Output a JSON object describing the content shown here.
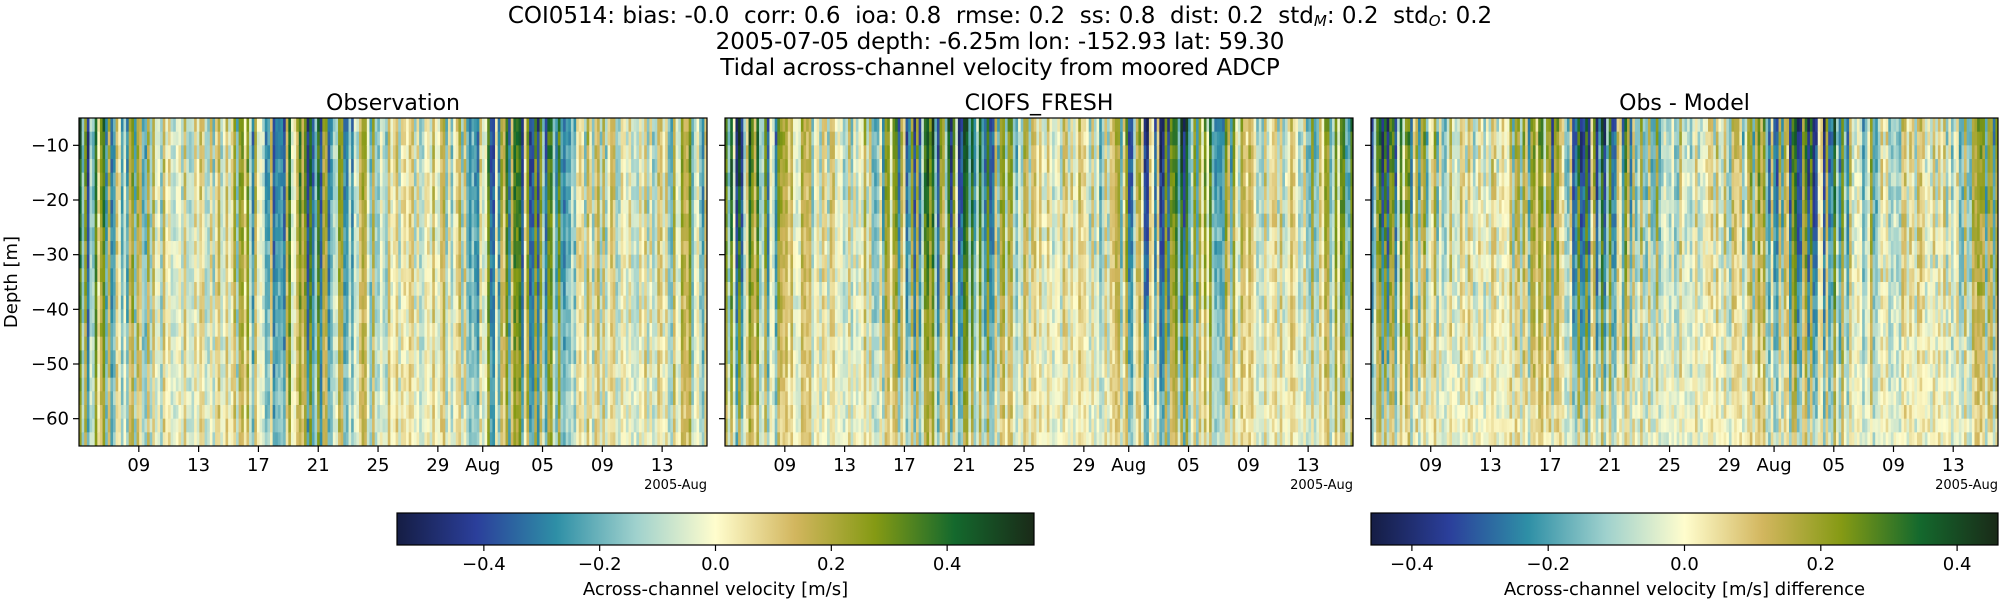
{
  "header": {
    "station": "COI0514",
    "stats": [
      {
        "key": "bias",
        "sub": "",
        "value": "-0.0"
      },
      {
        "key": "corr",
        "sub": "",
        "value": "0.6"
      },
      {
        "key": "ioa",
        "sub": "",
        "value": "0.8"
      },
      {
        "key": "rmse",
        "sub": "",
        "value": "0.2"
      },
      {
        "key": "ss",
        "sub": "",
        "value": "0.8"
      },
      {
        "key": "dist",
        "sub": "",
        "value": "0.2"
      },
      {
        "key": "std",
        "sub": "M",
        "value": "0.2"
      },
      {
        "key": "std",
        "sub": "O",
        "value": "0.2"
      }
    ],
    "line2": "2005-07-05 depth: -6.25m lon: -152.93 lat: 59.30",
    "line3": "Tidal across-channel velocity from moored ADCP"
  },
  "chart_data": [
    {
      "type": "heatmap",
      "title": "Observation",
      "ylabel": "Depth [m]",
      "xlabel": "",
      "x_range": [
        "2005-07-05",
        "2005-08-16"
      ],
      "ylim": [
        -65,
        -5
      ],
      "x_ticks": [
        {
          "date": "2005-07-09",
          "label": "09"
        },
        {
          "date": "2005-07-13",
          "label": "13"
        },
        {
          "date": "2005-07-17",
          "label": "17"
        },
        {
          "date": "2005-07-21",
          "label": "21"
        },
        {
          "date": "2005-07-25",
          "label": "25"
        },
        {
          "date": "2005-07-29",
          "label": "29"
        },
        {
          "date": "2005-08-01",
          "label": "Aug"
        },
        {
          "date": "2005-08-05",
          "label": "05"
        },
        {
          "date": "2005-08-09",
          "label": "09"
        },
        {
          "date": "2005-08-13",
          "label": "13"
        }
      ],
      "x_offset_label": "2005-Aug",
      "y_ticks": [
        -10,
        -20,
        -30,
        -40,
        -50,
        -60
      ],
      "tidal_amplitude_surface": 0.45,
      "tidal_amplitude_bottom": 0.25,
      "bias": 0.0
    },
    {
      "type": "heatmap",
      "title": "CIOFS_FRESH",
      "ylabel": "",
      "xlabel": "",
      "x_range": [
        "2005-07-05",
        "2005-08-16"
      ],
      "ylim": [
        -65,
        -5
      ],
      "x_ticks": [
        {
          "date": "2005-07-09",
          "label": "09"
        },
        {
          "date": "2005-07-13",
          "label": "13"
        },
        {
          "date": "2005-07-17",
          "label": "17"
        },
        {
          "date": "2005-07-21",
          "label": "21"
        },
        {
          "date": "2005-07-25",
          "label": "25"
        },
        {
          "date": "2005-07-29",
          "label": "29"
        },
        {
          "date": "2005-08-01",
          "label": "Aug"
        },
        {
          "date": "2005-08-05",
          "label": "05"
        },
        {
          "date": "2005-08-09",
          "label": "09"
        },
        {
          "date": "2005-08-13",
          "label": "13"
        }
      ],
      "x_offset_label": "2005-Aug",
      "y_ticks": [
        -10,
        -20,
        -30,
        -40,
        -50,
        -60
      ],
      "tidal_amplitude_surface": 0.5,
      "tidal_amplitude_bottom": 0.2,
      "bias": 0.0
    },
    {
      "type": "heatmap",
      "title": "Obs - Model",
      "ylabel": "",
      "xlabel": "",
      "x_range": [
        "2005-07-05",
        "2005-08-16"
      ],
      "ylim": [
        -65,
        -5
      ],
      "x_ticks": [
        {
          "date": "2005-07-09",
          "label": "09"
        },
        {
          "date": "2005-07-13",
          "label": "13"
        },
        {
          "date": "2005-07-17",
          "label": "17"
        },
        {
          "date": "2005-07-21",
          "label": "21"
        },
        {
          "date": "2005-07-25",
          "label": "25"
        },
        {
          "date": "2005-07-29",
          "label": "29"
        },
        {
          "date": "2005-08-01",
          "label": "Aug"
        },
        {
          "date": "2005-08-05",
          "label": "05"
        },
        {
          "date": "2005-08-09",
          "label": "09"
        },
        {
          "date": "2005-08-13",
          "label": "13"
        }
      ],
      "x_offset_label": "2005-Aug",
      "y_ticks": [
        -10,
        -20,
        -30,
        -40,
        -50,
        -60
      ],
      "tidal_amplitude_surface": 0.4,
      "tidal_amplitude_bottom": 0.12,
      "bias": 0.0
    }
  ],
  "colorbars": [
    {
      "label": "Across-channel velocity [m/s]",
      "range": [
        -0.55,
        0.55
      ],
      "ticks": [
        -0.4,
        -0.2,
        0.0,
        0.2,
        0.4
      ],
      "tick_labels": [
        "−0.4",
        "−0.2",
        "0.0",
        "0.2",
        "0.4"
      ]
    },
    {
      "label": "Across-channel velocity [m/s] difference",
      "range": [
        -0.46,
        0.46
      ],
      "ticks": [
        -0.4,
        -0.2,
        0.0,
        0.2,
        0.4
      ],
      "tick_labels": [
        "−0.4",
        "−0.2",
        "0.0",
        "0.2",
        "0.4"
      ]
    }
  ],
  "colormap": [
    "#151d44",
    "#2b3f9b",
    "#2e8fa6",
    "#9fd1cd",
    "#fffdcd",
    "#d2b65e",
    "#859a14",
    "#14692d",
    "#1a2a18"
  ]
}
